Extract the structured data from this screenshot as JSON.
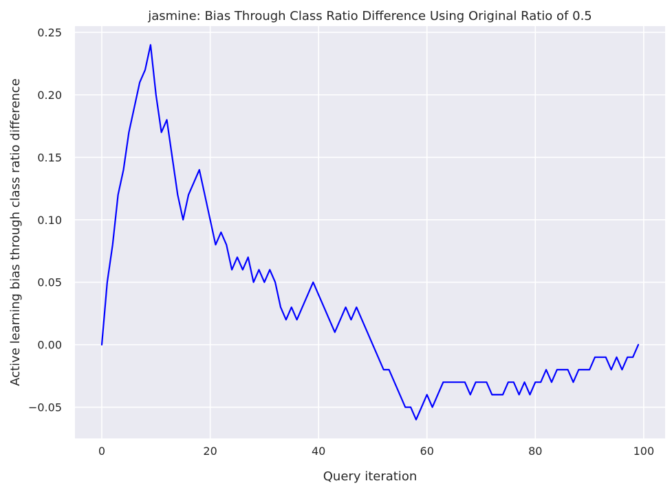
{
  "chart_data": {
    "type": "line",
    "title": "jasmine: Bias Through Class Ratio Difference Using Original Ratio of 0.5",
    "xlabel": "Query iteration",
    "ylabel": "Active learning bias through class ratio difference",
    "xlim": [
      -4.95,
      103.95
    ],
    "ylim": [
      -0.075,
      0.255
    ],
    "xticks": [
      0,
      20,
      40,
      60,
      80,
      100
    ],
    "yticks": [
      -0.05,
      0.0,
      0.05,
      0.1,
      0.15,
      0.2,
      0.25
    ],
    "xtick_labels": [
      "0",
      "20",
      "40",
      "60",
      "80",
      "100"
    ],
    "ytick_labels": [
      "−0.05",
      "0.00",
      "0.05",
      "0.10",
      "0.15",
      "0.20",
      "0.25"
    ],
    "grid": true,
    "series": [
      {
        "color": "#0000ff",
        "x": [
          0,
          1,
          2,
          3,
          4,
          5,
          6,
          7,
          8,
          9,
          10,
          11,
          12,
          13,
          14,
          15,
          16,
          17,
          18,
          19,
          20,
          21,
          22,
          23,
          24,
          25,
          26,
          27,
          28,
          29,
          30,
          31,
          32,
          33,
          34,
          35,
          36,
          37,
          38,
          39,
          40,
          41,
          42,
          43,
          44,
          45,
          46,
          47,
          48,
          49,
          50,
          51,
          52,
          53,
          54,
          55,
          56,
          57,
          58,
          59,
          60,
          61,
          62,
          63,
          64,
          65,
          66,
          67,
          68,
          69,
          70,
          71,
          72,
          73,
          74,
          75,
          76,
          77,
          78,
          79,
          80,
          81,
          82,
          83,
          84,
          85,
          86,
          87,
          88,
          89,
          90,
          91,
          92,
          93,
          94,
          95,
          96,
          97,
          98,
          99
        ],
        "y": [
          0.0,
          0.05,
          0.08,
          0.12,
          0.14,
          0.17,
          0.19,
          0.21,
          0.22,
          0.24,
          0.2,
          0.17,
          0.18,
          0.15,
          0.12,
          0.1,
          0.12,
          0.13,
          0.14,
          0.12,
          0.1,
          0.08,
          0.09,
          0.08,
          0.06,
          0.07,
          0.06,
          0.07,
          0.05,
          0.06,
          0.05,
          0.06,
          0.05,
          0.03,
          0.02,
          0.03,
          0.02,
          0.03,
          0.04,
          0.05,
          0.04,
          0.03,
          0.02,
          0.01,
          0.02,
          0.03,
          0.02,
          0.03,
          0.02,
          0.01,
          0.0,
          -0.01,
          -0.02,
          -0.02,
          -0.03,
          -0.04,
          -0.05,
          -0.05,
          -0.06,
          -0.05,
          -0.04,
          -0.05,
          -0.04,
          -0.03,
          -0.03,
          -0.03,
          -0.03,
          -0.03,
          -0.04,
          -0.03,
          -0.03,
          -0.03,
          -0.04,
          -0.04,
          -0.04,
          -0.03,
          -0.03,
          -0.04,
          -0.03,
          -0.04,
          -0.03,
          -0.03,
          -0.02,
          -0.03,
          -0.02,
          -0.02,
          -0.02,
          -0.03,
          -0.02,
          -0.02,
          -0.02,
          -0.01,
          -0.01,
          -0.01,
          -0.02,
          -0.01,
          -0.02,
          -0.01,
          -0.01,
          0.0
        ]
      }
    ]
  },
  "style": {
    "plot_background": "#eaeaf2",
    "grid_color": "#ffffff",
    "line_color": "#0000ff",
    "text_color": "#262626"
  }
}
